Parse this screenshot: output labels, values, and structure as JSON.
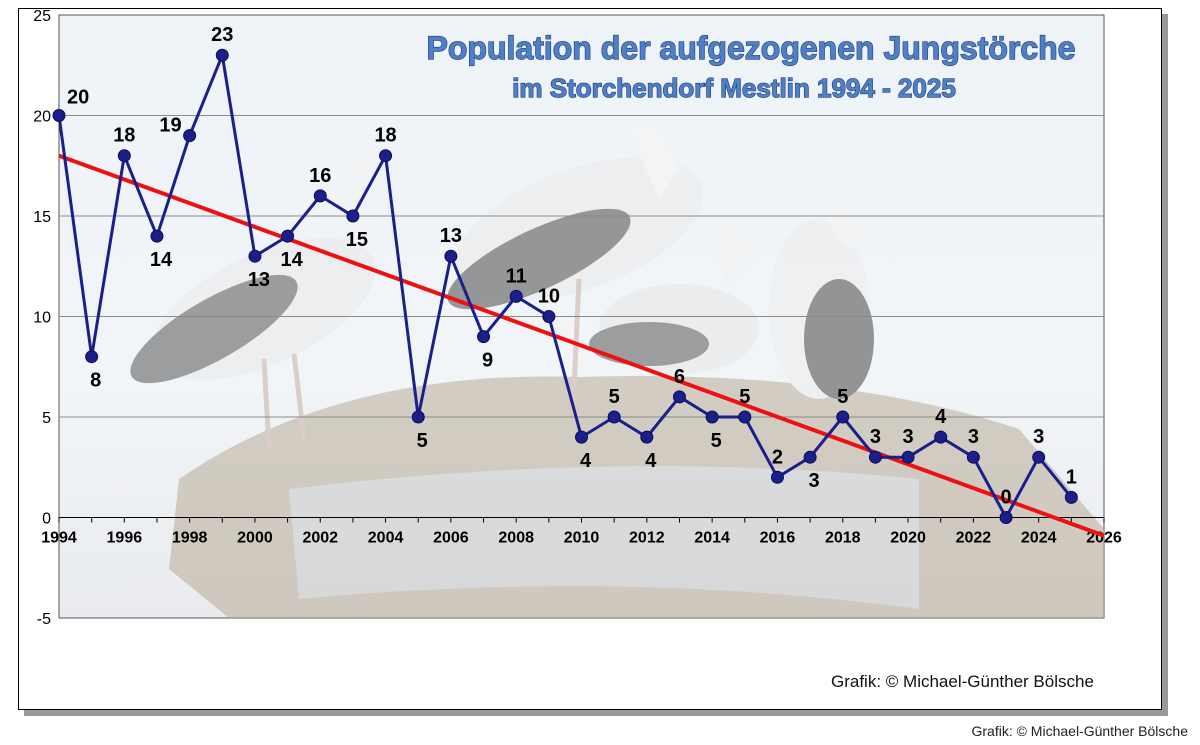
{
  "chart_data": {
    "type": "line",
    "title": "Population der aufgezogenen Jungstörche",
    "subtitle": "im Storchendorf Mestlin  1994 - 2025",
    "xlabel": "",
    "ylabel": "",
    "xlim": [
      1994,
      2026
    ],
    "ylim": [
      -5,
      25
    ],
    "x_ticks": [
      "1994",
      "1996",
      "1998",
      "2000",
      "2002",
      "2004",
      "2006",
      "2008",
      "2010",
      "2012",
      "2014",
      "2016",
      "2018",
      "2020",
      "2022",
      "2024",
      "2026"
    ],
    "y_ticks": [
      "25",
      "20",
      "15",
      "10",
      "5",
      "0",
      "-5"
    ],
    "grid": true,
    "background_image": "white storks on a nest",
    "series": [
      {
        "color": "#1a1f8a",
        "x": [
          1994,
          1995,
          1996,
          1997,
          1998,
          1999,
          2000,
          2001,
          2002,
          2003,
          2004,
          2005,
          2006,
          2007,
          2008,
          2009,
          2010,
          2011,
          2012,
          2013,
          2014,
          2015,
          2016,
          2017,
          2018,
          2019,
          2020,
          2021,
          2022,
          2023,
          2024,
          2025
        ],
        "values": [
          20,
          8,
          18,
          14,
          19,
          23,
          13,
          14,
          16,
          15,
          18,
          5,
          13,
          9,
          11,
          10,
          4,
          5,
          4,
          6,
          5,
          5,
          2,
          3,
          5,
          3,
          3,
          4,
          3,
          0,
          3,
          1
        ],
        "labels": [
          "20",
          "8",
          "18",
          "14",
          "19",
          "23",
          "13",
          "14",
          "16",
          "15",
          "18",
          "5",
          "13",
          "9",
          "11",
          "10",
          "4",
          "5",
          "4",
          "6",
          "5",
          "5",
          "2",
          "3",
          "5",
          "3",
          "3",
          "4",
          "3",
          "0",
          "3",
          "1"
        ]
      }
    ],
    "trendline": {
      "color": "#ee1111",
      "x": [
        1994,
        2026
      ],
      "values": [
        18,
        -0.9
      ]
    }
  },
  "credits": {
    "inner": "Grafik: © Michael-Günther Bölsche",
    "outer": "Grafik: © Michael-Günther Bölsche"
  }
}
